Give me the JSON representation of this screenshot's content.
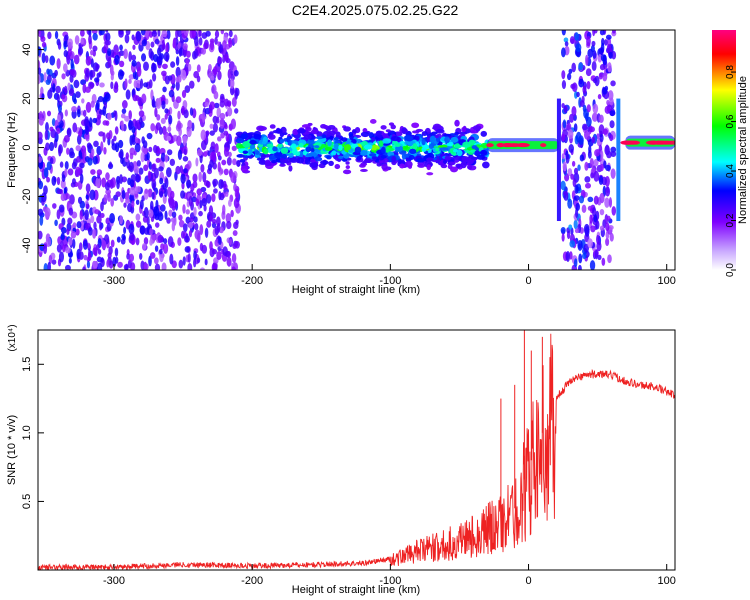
{
  "title": "C2E4.2025.075.02.25.G22",
  "chart_data": [
    {
      "type": "heatmap",
      "xlabel": "Height of straight line (km)",
      "ylabel": "Frequency (Hz)",
      "xlim": [
        -355,
        106
      ],
      "ylim": [
        -50,
        48
      ],
      "xticks": [
        -300,
        -200,
        -100,
        0,
        100
      ],
      "yticks": [
        -40,
        -20,
        0,
        20,
        40
      ],
      "colorbar": {
        "label": "Normalized spectral amplitude",
        "range": [
          0,
          0.97
        ],
        "ticks": [
          "0.0",
          "0.2",
          "0.4",
          "0.6",
          "0.8"
        ],
        "colors": [
          "#ffffff",
          "#7f00ff",
          "#0000ff",
          "#00ffff",
          "#00ff00",
          "#ffff00",
          "#ff0000",
          "#ff0080"
        ]
      },
      "regions": [
        {
          "from": -355,
          "to": -210,
          "pattern": "broadband noise",
          "max_amplitude": 0.25
        },
        {
          "from": -210,
          "to": -30,
          "pattern": "band near 0 Hz",
          "width_hz": 8,
          "max_amplitude": 0.45
        },
        {
          "from": -30,
          "to": 22,
          "pattern": "narrow tone near 1 Hz",
          "max_amplitude": 0.95
        },
        {
          "from": 25,
          "to": 62,
          "pattern": "broadband noise",
          "max_amplitude": 0.3
        },
        {
          "from": 70,
          "to": 106,
          "pattern": "narrow tone near 2 Hz",
          "max_amplitude": 0.95
        }
      ]
    },
    {
      "type": "line",
      "xlabel": "Height of straight line (km)",
      "ylabel": "SNR (10 * v/v)",
      "scale_label": "(x10⁴)",
      "xlim": [
        -355,
        106
      ],
      "ylim": [
        0,
        1.75
      ],
      "xticks": [
        -300,
        -200,
        -100,
        0,
        100
      ],
      "yticks": [
        "0.5",
        "1.0",
        "1.5"
      ],
      "color": "#ee2222",
      "series": [
        {
          "x": [
            -355,
            -300,
            -250,
            -200,
            -150,
            -120,
            -100,
            -80,
            -60,
            -40,
            -30,
            -20,
            -10,
            0,
            10,
            20,
            30,
            40,
            50,
            60,
            70,
            80,
            90,
            100,
            106
          ],
          "y": [
            0.02,
            0.02,
            0.04,
            0.03,
            0.04,
            0.05,
            0.08,
            0.15,
            0.2,
            0.28,
            0.33,
            0.38,
            0.45,
            0.75,
            1.0,
            1.25,
            1.38,
            1.42,
            1.43,
            1.42,
            1.38,
            1.35,
            1.34,
            1.3,
            1.27
          ]
        }
      ],
      "peaks": [
        {
          "x": -20,
          "y": 1.25
        },
        {
          "x": -10,
          "y": 1.35
        },
        {
          "x": -3,
          "y": 1.75
        },
        {
          "x": 2,
          "y": 1.6
        },
        {
          "x": 10,
          "y": 1.7
        }
      ]
    }
  ]
}
